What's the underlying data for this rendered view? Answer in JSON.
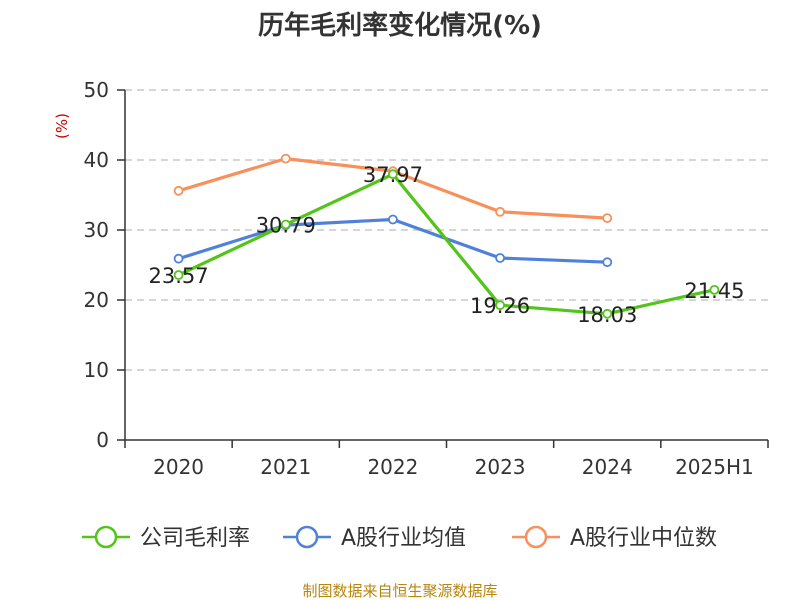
{
  "chart_data": {
    "type": "line",
    "title": "历年毛利率变化情况(%)",
    "ylabel": "(%)",
    "xlabel": "",
    "categories": [
      "2020",
      "2021",
      "2022",
      "2023",
      "2024",
      "2025H1"
    ],
    "ylim": [
      0,
      50
    ],
    "yticks": [
      0,
      10,
      20,
      30,
      40,
      50
    ],
    "grid": true,
    "legend_position": "bottom",
    "series": [
      {
        "name": "公司毛利率",
        "color": "#52c41a",
        "values": [
          23.57,
          30.79,
          37.97,
          19.26,
          18.03,
          21.45
        ],
        "labels": [
          "23.57",
          "30.79",
          "37.97",
          "19.26",
          "18.03",
          "21.45"
        ]
      },
      {
        "name": "A股行业均值",
        "color": "#4f81db",
        "values": [
          25.9,
          30.7,
          31.5,
          26.0,
          25.4,
          null
        ]
      },
      {
        "name": "A股行业中位数",
        "color": "#f7905a",
        "values": [
          35.6,
          40.2,
          38.4,
          32.6,
          31.7,
          null
        ]
      }
    ]
  },
  "source": "制图数据来自恒生聚源数据库"
}
